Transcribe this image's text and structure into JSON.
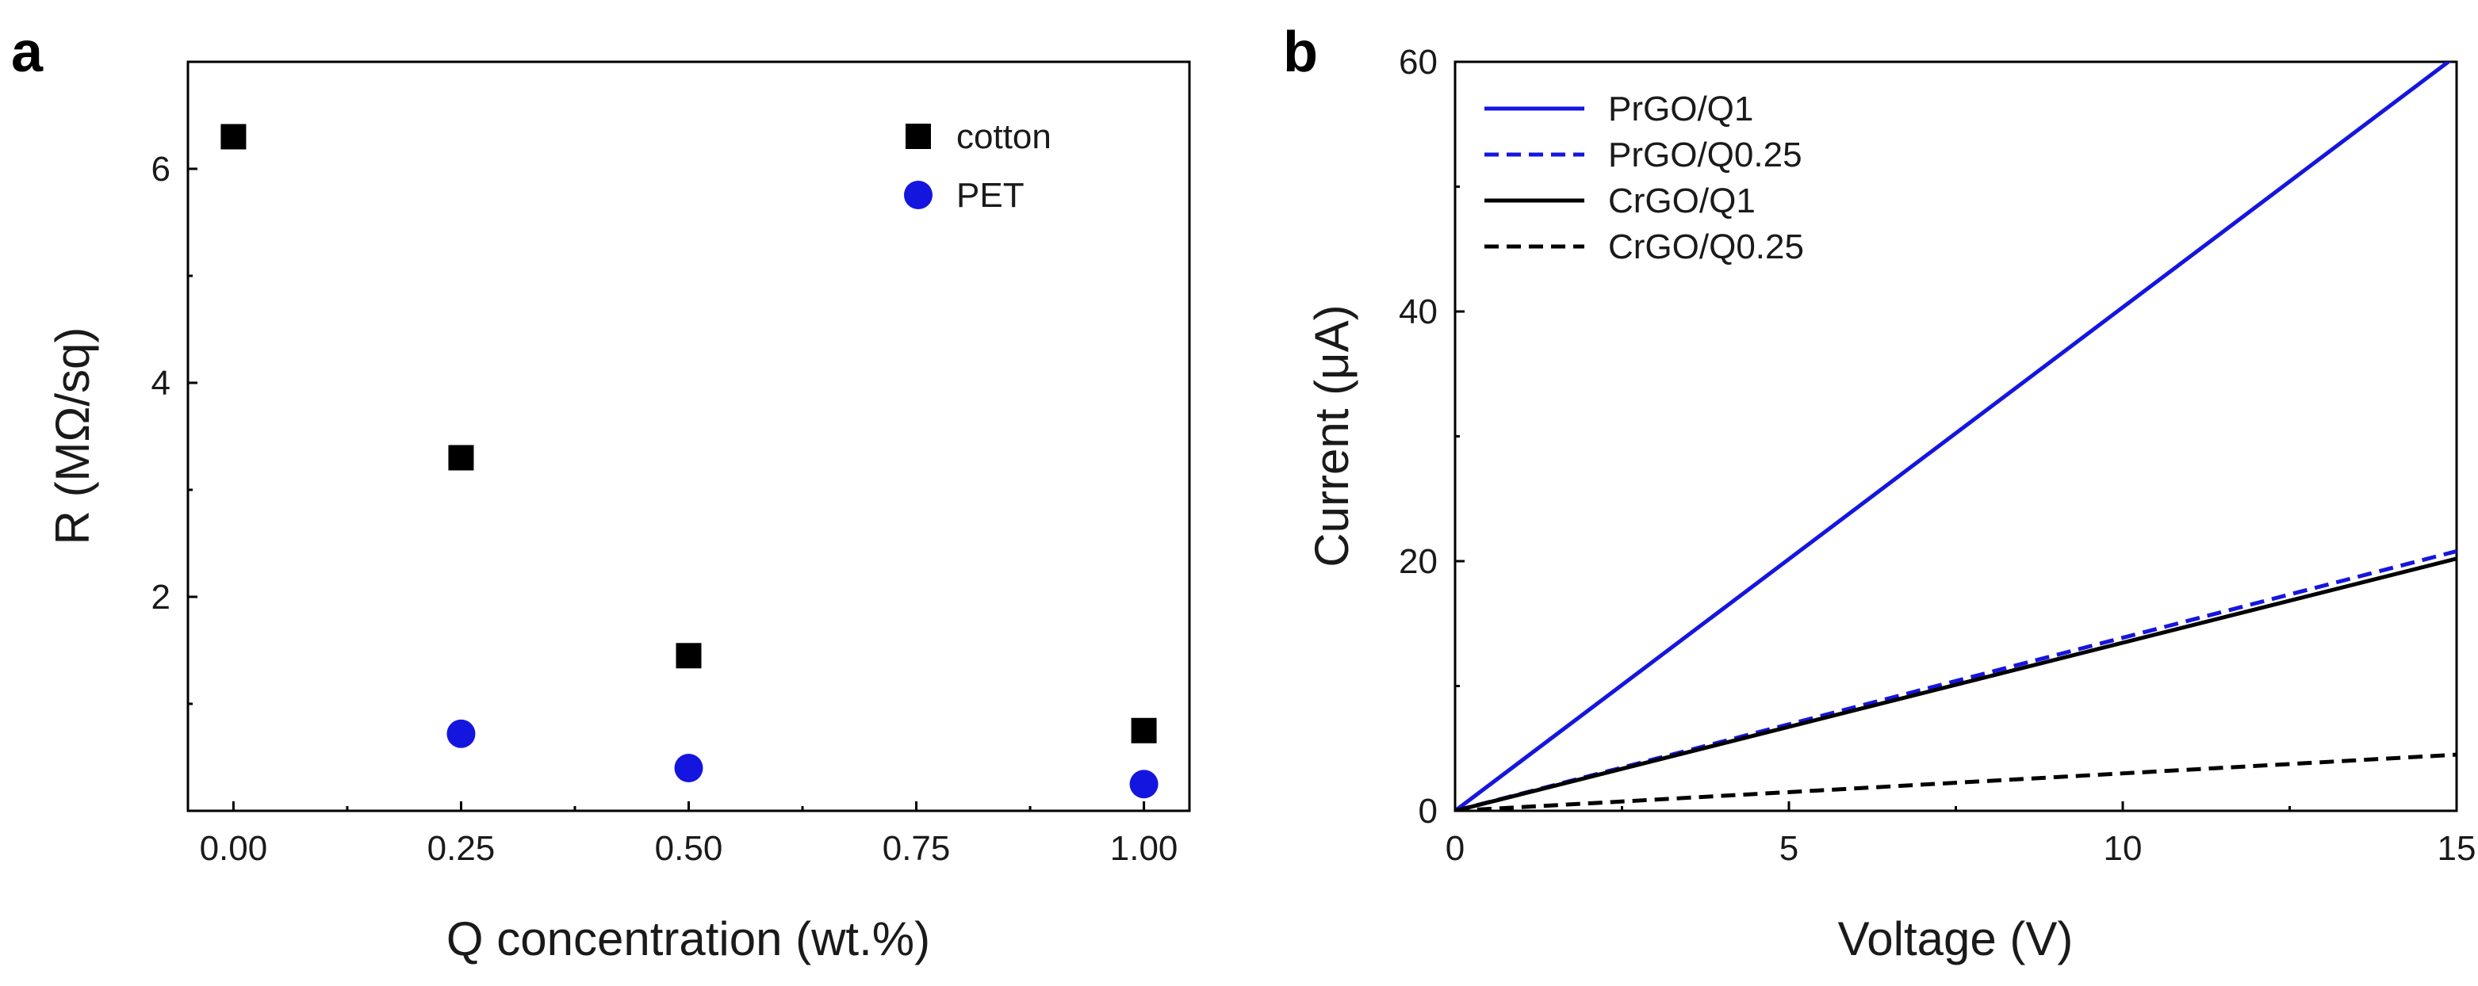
{
  "panels": {
    "a": {
      "label": "a"
    },
    "b": {
      "label": "b"
    }
  },
  "chart_data": [
    {
      "type": "scatter",
      "title": "",
      "xlabel": "Q concentration (wt.%)",
      "ylabel": "R (MΩ/sq)",
      "xlim": [
        -0.05,
        1.05
      ],
      "ylim": [
        0,
        7
      ],
      "xticks": [
        "0.00",
        "0.25",
        "0.50",
        "0.75",
        "1.00"
      ],
      "yticks": [
        "2",
        "4",
        "6"
      ],
      "legend_position": "top-right",
      "series": [
        {
          "name": "cotton",
          "marker": "square",
          "color": "#000000",
          "points": [
            [
              0.0,
              6.3
            ],
            [
              0.25,
              3.3
            ],
            [
              0.5,
              1.45
            ],
            [
              1.0,
              0.75
            ]
          ]
        },
        {
          "name": "PET",
          "marker": "circle",
          "color": "#1515e0",
          "points": [
            [
              0.25,
              0.72
            ],
            [
              0.5,
              0.4
            ],
            [
              1.0,
              0.25
            ]
          ]
        }
      ]
    },
    {
      "type": "line",
      "title": "",
      "xlabel": "Voltage (V)",
      "ylabel": "Current (μA)",
      "xlim": [
        0,
        15
      ],
      "ylim": [
        0,
        60
      ],
      "xticks": [
        "0",
        "5",
        "10",
        "15"
      ],
      "yticks": [
        "0",
        "20",
        "40",
        "60"
      ],
      "legend_position": "top-left",
      "series": [
        {
          "name": "PrGO/Q1",
          "color": "#1515e0",
          "dash": "solid",
          "x": [
            0,
            15
          ],
          "y": [
            0,
            60.5
          ]
        },
        {
          "name": "PrGO/Q0.25",
          "color": "#1515e0",
          "dash": "dashed",
          "x": [
            0,
            15
          ],
          "y": [
            0,
            20.8
          ]
        },
        {
          "name": "CrGO/Q1",
          "color": "#000000",
          "dash": "solid",
          "x": [
            0,
            15
          ],
          "y": [
            0,
            20.2
          ]
        },
        {
          "name": "CrGO/Q0.25",
          "color": "#000000",
          "dash": "dashed",
          "x": [
            0,
            15
          ],
          "y": [
            0,
            4.5
          ]
        }
      ]
    }
  ]
}
